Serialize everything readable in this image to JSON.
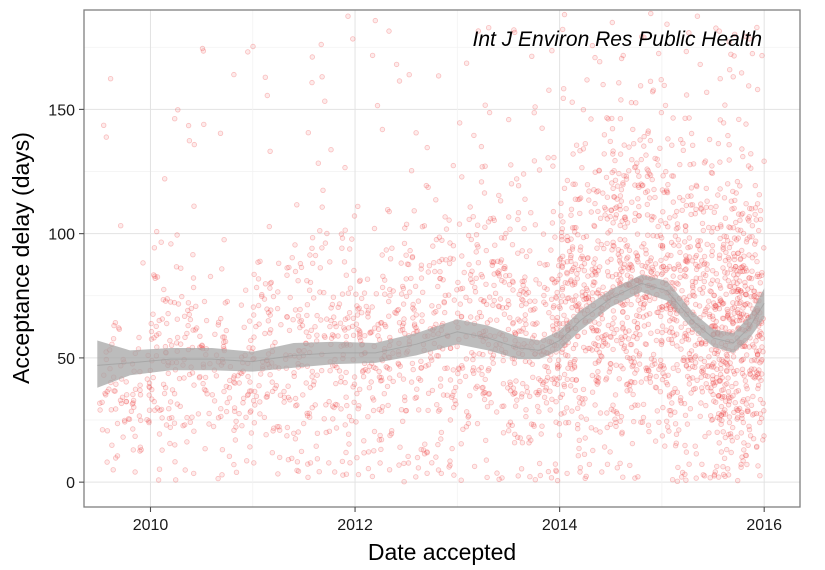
{
  "chart_data": {
    "type": "scatter",
    "title": "",
    "annotation": "Int J Environ Res Public Health",
    "xlabel": "Date accepted",
    "ylabel": "Acceptance delay (days)",
    "xlim": [
      2009.35,
      2016.35
    ],
    "ylim": [
      -10,
      190
    ],
    "x_ticks": [
      2010,
      2012,
      2014,
      2016
    ],
    "x_tick_labels": [
      "2010",
      "2012",
      "2014",
      "2016"
    ],
    "y_ticks": [
      0,
      50,
      100,
      150
    ],
    "y_tick_labels": [
      "0",
      "50",
      "100",
      "150"
    ],
    "grid": true,
    "legend": "none",
    "point_color": "#ee3b3b",
    "smooth_color": "#a6a6a6",
    "smooth_band": {
      "x": [
        2009.48,
        2009.8,
        2010.2,
        2010.6,
        2011.0,
        2011.4,
        2011.8,
        2012.2,
        2012.6,
        2013.0,
        2013.3,
        2013.6,
        2013.8,
        2014.0,
        2014.2,
        2014.5,
        2014.8,
        2015.05,
        2015.3,
        2015.5,
        2015.7,
        2015.85,
        2016.0
      ],
      "fit": [
        47,
        48,
        49.5,
        49.5,
        48.5,
        51,
        52,
        52,
        55.5,
        60.5,
        58,
        54,
        53,
        57,
        65,
        74,
        80,
        77,
        65,
        58,
        56,
        62,
        72
      ],
      "lower": [
        38,
        43,
        45,
        45,
        44.5,
        46,
        47.5,
        48,
        51,
        55.5,
        53,
        49.5,
        49.5,
        53,
        61,
        70.5,
        76.5,
        73,
        61.5,
        54.5,
        52,
        57.5,
        66
      ],
      "upper": [
        57,
        53,
        54,
        54,
        52.5,
        56,
        56.5,
        56,
        60,
        65.5,
        63,
        58.5,
        57,
        61,
        69,
        77.5,
        83.5,
        81,
        68.5,
        61.5,
        60,
        66.5,
        78
      ]
    },
    "point_groups": [
      {
        "from": 2009.5,
        "to": 2010.0,
        "count": 90,
        "mean": 38,
        "sd": 16
      },
      {
        "from": 2010.0,
        "to": 2010.5,
        "count": 130,
        "mean": 50,
        "sd": 22
      },
      {
        "from": 2010.5,
        "to": 2011.0,
        "count": 110,
        "mean": 40,
        "sd": 16
      },
      {
        "from": 2011.0,
        "to": 2011.5,
        "count": 140,
        "mean": 48,
        "sd": 26
      },
      {
        "from": 2011.5,
        "to": 2012.0,
        "count": 160,
        "mean": 50,
        "sd": 30
      },
      {
        "from": 2012.0,
        "to": 2012.5,
        "count": 170,
        "mean": 50,
        "sd": 25
      },
      {
        "from": 2012.5,
        "to": 2013.0,
        "count": 170,
        "mean": 58,
        "sd": 28
      },
      {
        "from": 2013.0,
        "to": 2013.5,
        "count": 190,
        "mean": 58,
        "sd": 28
      },
      {
        "from": 2013.5,
        "to": 2014.0,
        "count": 240,
        "mean": 55,
        "sd": 26
      },
      {
        "from": 2014.0,
        "to": 2014.5,
        "count": 340,
        "mean": 66,
        "sd": 32
      },
      {
        "from": 2014.5,
        "to": 2015.0,
        "count": 380,
        "mean": 78,
        "sd": 36
      },
      {
        "from": 2015.0,
        "to": 2015.5,
        "count": 380,
        "mean": 66,
        "sd": 34
      },
      {
        "from": 2015.5,
        "to": 2016.0,
        "count": 520,
        "mean": 58,
        "sd": 30
      }
    ]
  }
}
